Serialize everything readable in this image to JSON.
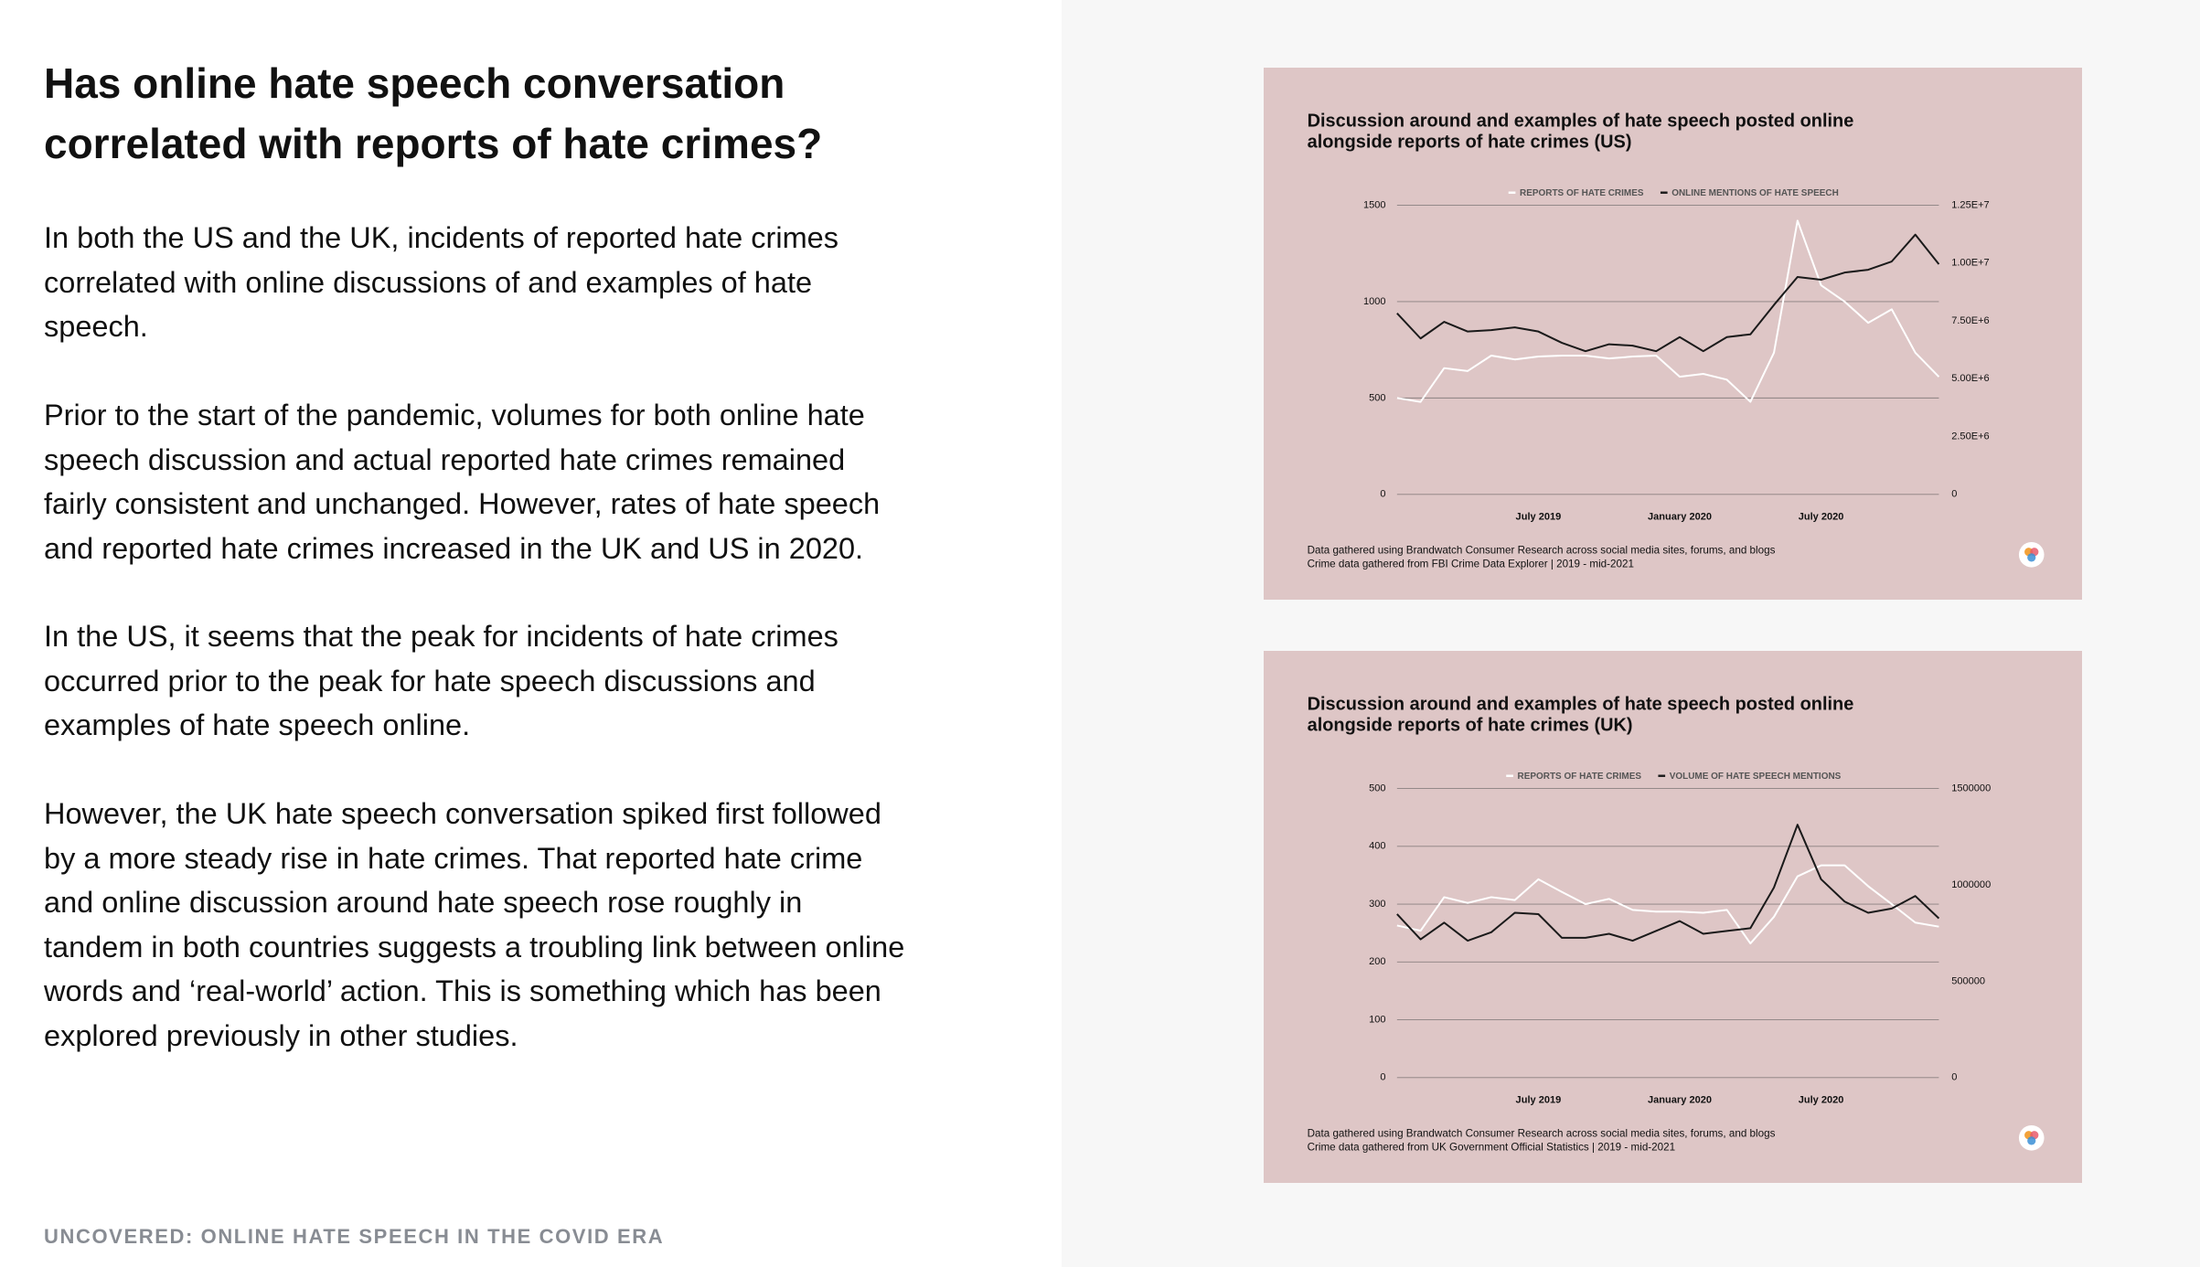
{
  "page": {
    "heading": "Has online hate speech conversation correlated with reports of hate crimes?",
    "paragraphs": [
      "In both the US and the UK, incidents of reported hate crimes correlated with online discussions of and examples of hate speech.",
      "Prior to the start of the pandemic, volumes for both online hate speech discussion and actual reported hate crimes remained fairly consistent and unchanged. However, rates of hate speech and reported hate crimes increased in the UK and US in 2020.",
      "In the US, it seems that the peak for incidents of hate crimes occurred prior to the peak for hate speech discussions and examples of hate speech online.",
      "However, the UK hate speech conversation spiked first followed by a more steady rise in hate crimes. That reported hate crime and online discussion around hate speech rose roughly in tandem in both countries suggests a troubling link between online words and ‘real-world’ action. This is something which has been explored previously in other studies."
    ],
    "footer": "UNCOVERED: ONLINE HATE SPEECH IN THE COVID ERA"
  },
  "chart_data": [
    {
      "type": "line",
      "title": "Discussion around and examples of hate speech posted online alongside reports of hate crimes (US)",
      "notes": [
        "Data gathered using Brandwatch Consumer Research across social media sites, forums, and blogs",
        "Crime data gathered from FBI Crime Data Explorer | 2019 - mid-2021"
      ],
      "categories": [
        null,
        null,
        null,
        null,
        null,
        null,
        "July 2019",
        null,
        null,
        null,
        null,
        null,
        "January 2020",
        null,
        null,
        null,
        null,
        null,
        "July 2020",
        null,
        null,
        null,
        null,
        null
      ],
      "series": [
        {
          "name": "REPORTS OF HATE CRIMES",
          "color": "#ffffff",
          "values": [
            500,
            480,
            655,
            640,
            720,
            700,
            715,
            720,
            720,
            705,
            715,
            720,
            610,
            625,
            595,
            480,
            735,
            1420,
            1085,
            1000,
            890,
            960,
            735,
            610
          ]
        },
        {
          "name": "ONLINE MENTIONS OF HATE SPEECH",
          "color": "#1a1a1a",
          "axis": "y2",
          "values": [
            7830000,
            6740000,
            7460000,
            7040000,
            7100000,
            7220000,
            7040000,
            6550000,
            6190000,
            6490000,
            6430000,
            6190000,
            6800000,
            6190000,
            6800000,
            6920000,
            8190000,
            9400000,
            9280000,
            9590000,
            9710000,
            10070000,
            11230000,
            9950000
          ]
        }
      ],
      "ylim": [
        0,
        1500
      ],
      "yticks": [
        0,
        500,
        1000,
        1500
      ],
      "y2lim": [
        0,
        12500000
      ],
      "y2ticks": [
        0,
        {
          "value": 2500000,
          "label": "2.50E+6"
        },
        {
          "value": 5000000,
          "label": "5.00E+6"
        },
        {
          "value": 7500000,
          "label": "7.50E+6"
        },
        {
          "value": 10000000,
          "label": "1.00E+7"
        },
        {
          "value": 12500000,
          "label": "1.25E+7"
        }
      ],
      "grid": true,
      "legend": "top"
    },
    {
      "type": "line",
      "title": "Discussion around and examples of hate speech posted online alongside reports of hate crimes (UK)",
      "notes": [
        "Data gathered using Brandwatch Consumer Research across social media sites, forums, and blogs",
        "Crime data gathered from UK Government Official Statistics | 2019 - mid-2021"
      ],
      "categories": [
        null,
        null,
        null,
        null,
        null,
        null,
        "July 2019",
        null,
        null,
        null,
        null,
        null,
        "January 2020",
        null,
        null,
        null,
        null,
        null,
        "July 2020",
        null,
        null,
        null,
        null,
        null
      ],
      "series": [
        {
          "name": "REPORTS OF HATE CRIMES",
          "color": "#ffffff",
          "values": [
            263,
            254,
            312,
            302,
            312,
            307,
            343,
            321,
            300,
            309,
            290,
            287,
            287,
            285,
            290,
            232,
            278,
            348,
            367,
            367,
            331,
            300,
            268,
            261
          ]
        },
        {
          "name": "VOLUME OF HATE SPEECH MENTIONS",
          "color": "#1a1a1a",
          "axis": "y2",
          "values": [
            848000,
            717000,
            804000,
            710000,
            754000,
            855000,
            848000,
            725000,
            725000,
            746000,
            710000,
            761000,
            812000,
            746000,
            761000,
            775000,
            986000,
            1312000,
            1029000,
            913000,
            855000,
            877000,
            942000,
            826000
          ]
        }
      ],
      "ylim": [
        0,
        500
      ],
      "yticks": [
        0,
        100,
        200,
        300,
        400,
        500
      ],
      "y2lim": [
        0,
        1500000
      ],
      "y2ticks": [
        0,
        500000,
        1000000,
        1500000
      ],
      "grid": true,
      "legend": "top"
    }
  ]
}
